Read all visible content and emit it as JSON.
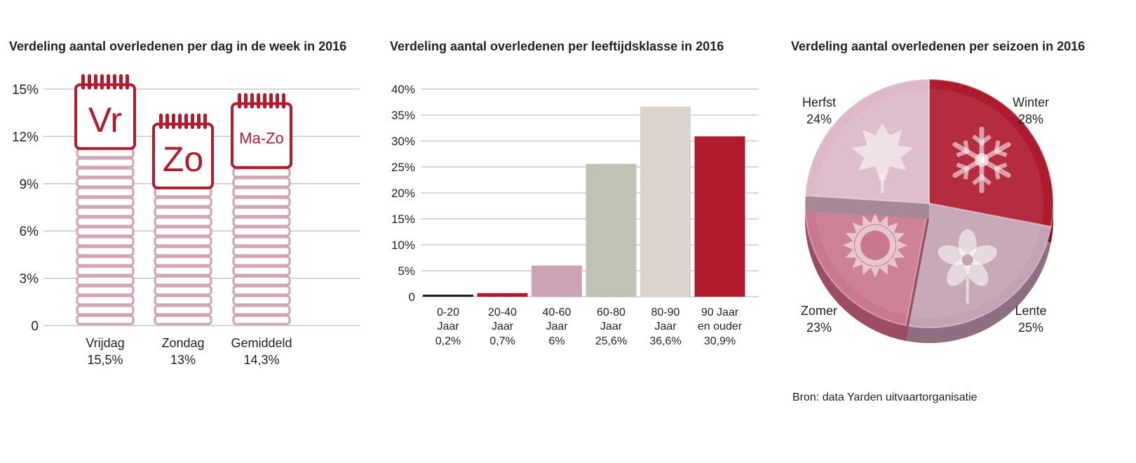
{
  "chart_data": [
    {
      "type": "bar",
      "title": "Verdeling aantal overledenen per dag in de week in 2016",
      "yticks": [
        "15%",
        "12%",
        "9%",
        "6%",
        "3%",
        "0"
      ],
      "ylim": [
        0,
        15
      ],
      "categories": [
        {
          "name": "Vrijdag",
          "value_label": "15,5%",
          "value": 15.5,
          "icon_text": "Vr"
        },
        {
          "name": "Zondag",
          "value_label": "13%",
          "value": 13,
          "icon_text": "Zo"
        },
        {
          "name": "Gemiddeld",
          "value_label": "14,3%",
          "value": 14.3,
          "icon_text": "Ma-Zo"
        }
      ],
      "colors": {
        "stack": "#d3a3b6",
        "calendar": "#b01c2e",
        "grid": "#bfbfbf"
      }
    },
    {
      "type": "bar",
      "title": "Verdeling aantal overledenen per leeftijdsklasse in 2016",
      "yticks": [
        "40%",
        "35%",
        "30%",
        "25%",
        "20%",
        "15%",
        "10%",
        "5%",
        "0"
      ],
      "ylim": [
        0,
        40
      ],
      "categories": [
        {
          "line1": "0-20",
          "line2": "Jaar",
          "line3": "0,2%",
          "value": 0.2,
          "color": "#231f20"
        },
        {
          "line1": "20-40",
          "line2": "Jaar",
          "line3": "0,7%",
          "value": 0.7,
          "color": "#b01c2e"
        },
        {
          "line1": "40-60",
          "line2": "Jaar",
          "line3": "6%",
          "value": 6,
          "color": "#cca2b5"
        },
        {
          "line1": "60-80",
          "line2": "Jaar",
          "line3": "25,6%",
          "value": 25.6,
          "color": "#c0c3b4"
        },
        {
          "line1": "80-90",
          "line2": "Jaar",
          "line3": "36,6%",
          "value": 36.6,
          "color": "#dbd3cc"
        },
        {
          "line1": "90 Jaar",
          "line2": "en ouder",
          "line3": "30,9%",
          "value": 30.9,
          "color": "#b01c2e"
        }
      ]
    },
    {
      "type": "pie",
      "title": "Verdeling aantal overledenen per seizoen in 2016",
      "slices": [
        {
          "label": "Winter",
          "value_label": "28%",
          "value": 28,
          "color": "#ad1b2f"
        },
        {
          "label": "Lente",
          "value_label": "25%",
          "value": 25,
          "color": "#c3a2b4"
        },
        {
          "label": "Zomer",
          "value_label": "23%",
          "value": 23,
          "color": "#c9788f"
        },
        {
          "label": "Herfst",
          "value_label": "24%",
          "value": 24,
          "color": "#dcb8c8"
        }
      ],
      "source": "Bron: data Yarden uitvaartorganisatie"
    }
  ]
}
